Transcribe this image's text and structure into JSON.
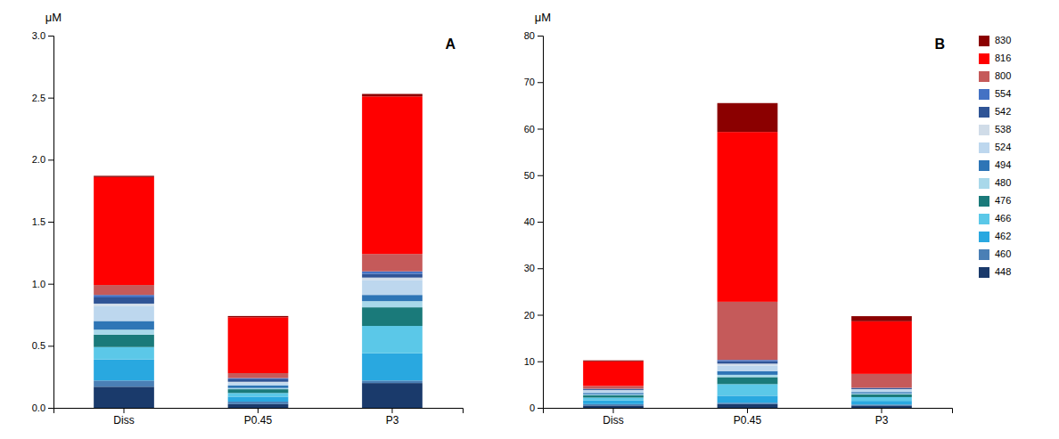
{
  "chart_data": [
    {
      "type": "bar",
      "stacked": true,
      "categories": [
        "Diss",
        "P0.45",
        "P3"
      ],
      "series": [
        {
          "name": "448",
          "color": "#1a3a6b",
          "values": [
            0.17,
            0.03,
            0.2
          ]
        },
        {
          "name": "460",
          "color": "#4a7fb5",
          "values": [
            0.05,
            0.02,
            0.02
          ]
        },
        {
          "name": "462",
          "color": "#29a8e0",
          "values": [
            0.17,
            0.04,
            0.22
          ]
        },
        {
          "name": "466",
          "color": "#5bc8e8",
          "values": [
            0.1,
            0.03,
            0.22
          ]
        },
        {
          "name": "476",
          "color": "#1a7a7a",
          "values": [
            0.1,
            0.03,
            0.15
          ]
        },
        {
          "name": "480",
          "color": "#a8d8ea",
          "values": [
            0.04,
            0.01,
            0.05
          ]
        },
        {
          "name": "494",
          "color": "#2e75b6",
          "values": [
            0.07,
            0.02,
            0.05
          ]
        },
        {
          "name": "524",
          "color": "#bdd7ee",
          "values": [
            0.12,
            0.02,
            0.12
          ]
        },
        {
          "name": "538",
          "color": "#d0dce8",
          "values": [
            0.02,
            0.01,
            0.02
          ]
        },
        {
          "name": "542",
          "color": "#2f5496",
          "values": [
            0.05,
            0.02,
            0.03
          ]
        },
        {
          "name": "554",
          "color": "#4472c4",
          "values": [
            0.02,
            0.01,
            0.02
          ]
        },
        {
          "name": "800",
          "color": "#c55a5a",
          "values": [
            0.08,
            0.04,
            0.14
          ]
        },
        {
          "name": "816",
          "color": "#ff0000",
          "values": [
            0.87,
            0.45,
            1.27
          ]
        },
        {
          "name": "830",
          "color": "#8b0000",
          "values": [
            0.01,
            0.01,
            0.02
          ]
        }
      ],
      "ylim": [
        0,
        3.0
      ],
      "yticks": [
        {
          "value": 0,
          "label": "0.0"
        },
        0.5,
        {
          "value": 1,
          "label": "1.0"
        },
        1.5,
        {
          "value": 2,
          "label": "2.0"
        },
        2.5,
        {
          "value": 3,
          "label": "3.0"
        }
      ],
      "y_label": "μM",
      "annotations": [
        "A"
      ]
    },
    {
      "type": "bar",
      "stacked": true,
      "legend": "right",
      "categories": [
        "Diss",
        "P0.45",
        "P3"
      ],
      "series": [
        {
          "name": "448",
          "color": "#1a3a6b",
          "values": [
            0.5,
            0.8,
            0.5
          ]
        },
        {
          "name": "460",
          "color": "#4a7fb5",
          "values": [
            0.3,
            0.3,
            0.2
          ]
        },
        {
          "name": "462",
          "color": "#29a8e0",
          "values": [
            0.8,
            1.5,
            0.8
          ]
        },
        {
          "name": "466",
          "color": "#5bc8e8",
          "values": [
            0.6,
            2.5,
            0.8
          ]
        },
        {
          "name": "476",
          "color": "#1a7a7a",
          "values": [
            0.5,
            1.5,
            0.6
          ]
        },
        {
          "name": "480",
          "color": "#a8d8ea",
          "values": [
            0.2,
            0.5,
            0.2
          ]
        },
        {
          "name": "494",
          "color": "#2e75b6",
          "values": [
            0.3,
            0.8,
            0.3
          ]
        },
        {
          "name": "524",
          "color": "#bdd7ee",
          "values": [
            0.5,
            1.2,
            0.5
          ]
        },
        {
          "name": "538",
          "color": "#d0dce8",
          "values": [
            0.1,
            0.4,
            0.1
          ]
        },
        {
          "name": "542",
          "color": "#2f5496",
          "values": [
            0.2,
            0.5,
            0.2
          ]
        },
        {
          "name": "554",
          "color": "#4472c4",
          "values": [
            0.1,
            0.3,
            0.1
          ]
        },
        {
          "name": "800",
          "color": "#c55a5a",
          "values": [
            0.6,
            12.5,
            3.0
          ]
        },
        {
          "name": "816",
          "color": "#ff0000",
          "values": [
            5.3,
            36.5,
            11.3
          ]
        },
        {
          "name": "830",
          "color": "#8b0000",
          "values": [
            0.2,
            6.2,
            1.1
          ]
        }
      ],
      "ylim": [
        0,
        80
      ],
      "yticks": [
        0,
        10,
        20,
        30,
        40,
        50,
        60,
        70,
        80
      ],
      "y_label": "μM",
      "annotations": [
        "B"
      ]
    }
  ]
}
